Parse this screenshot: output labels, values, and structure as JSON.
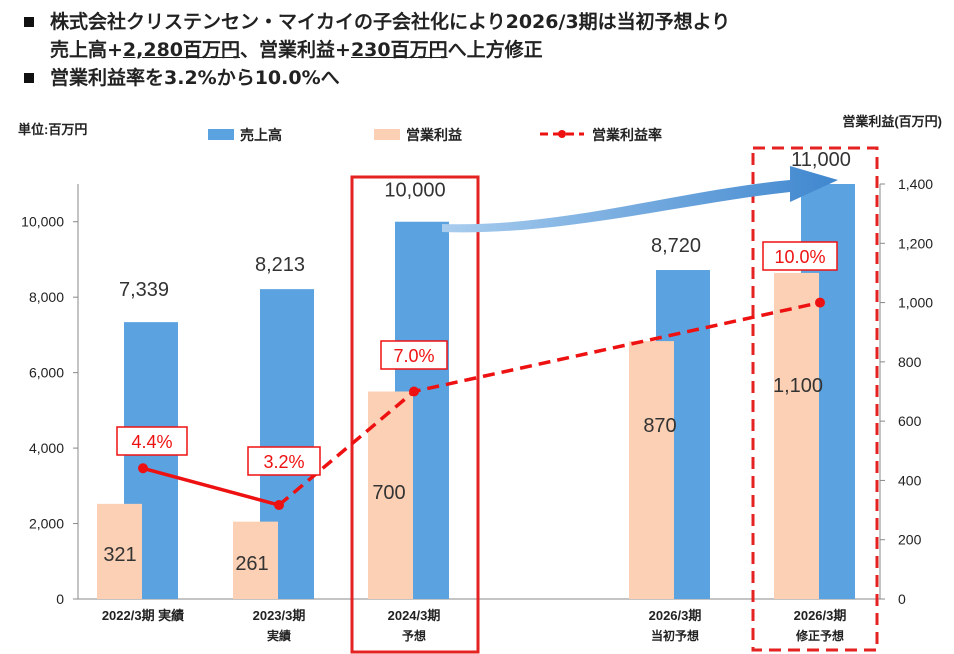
{
  "headline": {
    "line1": "株式会社クリステンセン・マイカイの子会社化により2026/3期は当初予想より",
    "line2_a": "売上高+",
    "line2_b": "2,280百万円",
    "line2_c": "、営業利益+",
    "line2_d": "230百万円",
    "line2_e": "へ上方修正",
    "line3": "営業利益率を3.2%から10.0%へ"
  },
  "unit_label": "単位:百万円",
  "right_axis_title": "営業利益(百万円)",
  "colors": {
    "sales": "#5ba3e0",
    "profit": "#fcd0b4",
    "margin": "#ee1111",
    "highlight": "#e42222",
    "arrow": "#4a8fd0"
  },
  "chart_data": {
    "type": "bar",
    "categories": [
      {
        "line1": "2022/3期 実績",
        "line2": ""
      },
      {
        "line1": "2023/3期",
        "line2": "実績"
      },
      {
        "line1": "2024/3期",
        "line2": "予想"
      },
      {
        "line1": "2026/3期",
        "line2": "当初予想"
      },
      {
        "line1": "2026/3期",
        "line2": "修正予想"
      }
    ],
    "series": [
      {
        "name": "売上高",
        "axis": "left",
        "values": [
          7339,
          8213,
          10000,
          8720,
          11000
        ],
        "labels": [
          "7,339",
          "8,213",
          "10,000",
          "8,720",
          "11,000"
        ]
      },
      {
        "name": "営業利益",
        "axis": "right",
        "values": [
          321,
          261,
          700,
          870,
          1100
        ],
        "labels": [
          "321",
          "261",
          "700",
          "870",
          "1,100"
        ]
      },
      {
        "name": "営業利益率",
        "axis": "right",
        "type": "line",
        "values": [
          441,
          317,
          700,
          null,
          1000
        ],
        "labels": [
          "4.4%",
          "3.2%",
          "7.0%",
          "",
          "10.0%"
        ]
      }
    ],
    "left_axis": {
      "range": [
        0,
        11000
      ],
      "ticks": [
        "0",
        "2,000",
        "4,000",
        "6,000",
        "8,000",
        "10,000"
      ],
      "tick_values": [
        0,
        2000,
        4000,
        6000,
        8000,
        10000
      ]
    },
    "right_axis": {
      "range": [
        0,
        1400
      ],
      "ticks": [
        "0",
        "200",
        "400",
        "600",
        "800",
        "1,000",
        "1,200",
        "1,400"
      ],
      "tick_values": [
        0,
        200,
        400,
        600,
        800,
        1000,
        1200,
        1400
      ]
    },
    "grid": false,
    "legend": "top"
  }
}
